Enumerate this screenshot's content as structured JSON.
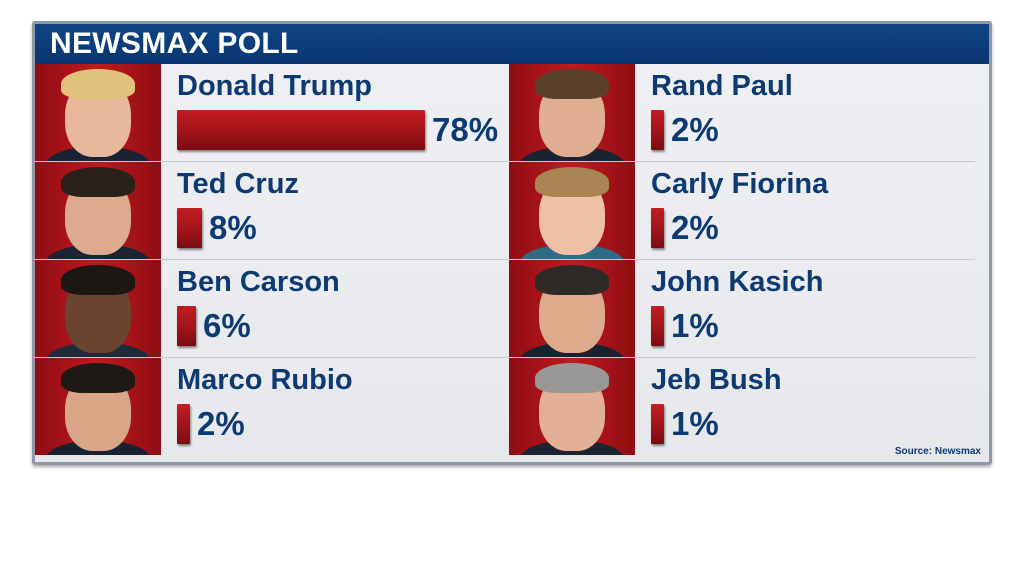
{
  "header": {
    "title": "NEWSMAX POLL"
  },
  "source": "Source: Newsmax",
  "colors": {
    "header": "#0f4585",
    "bar": "#b0171c",
    "text": "#0d3a70",
    "photo_bg": "#c01a1f"
  },
  "chart_data": {
    "type": "bar",
    "title": "NEWSMAX POLL",
    "categories": [
      "Donald Trump",
      "Ted Cruz",
      "Ben Carson",
      "Marco Rubio",
      "Rand Paul",
      "Carly Fiorina",
      "John Kasich",
      "Jeb Bush"
    ],
    "values": [
      78,
      8,
      6,
      2,
      2,
      2,
      1,
      1
    ],
    "labels": [
      "78%",
      "8%",
      "6%",
      "2%",
      "2%",
      "2%",
      "1%",
      "1%"
    ],
    "unit": "%",
    "ylim": [
      0,
      78
    ],
    "source": "Source: Newsmax"
  },
  "candidates": [
    {
      "name": "Donald Trump",
      "pct_label": "78%",
      "value": 78,
      "hair": "#e1c27a",
      "skin": "#e8b89a",
      "suit": "#1b2233"
    },
    {
      "name": "Ted Cruz",
      "pct_label": "8%",
      "value": 8,
      "hair": "#2b211b",
      "skin": "#dcab8e",
      "suit": "#1c2433"
    },
    {
      "name": "Ben Carson",
      "pct_label": "6%",
      "value": 6,
      "hair": "#1d1714",
      "skin": "#6b4430",
      "suit": "#1f2a3a"
    },
    {
      "name": "Marco Rubio",
      "pct_label": "2%",
      "value": 2,
      "hair": "#1f1915",
      "skin": "#d9a687",
      "suit": "#1a2230"
    },
    {
      "name": "Rand Paul",
      "pct_label": "2%",
      "value": 2,
      "hair": "#5a3f2a",
      "skin": "#e0ae90",
      "suit": "#1b2230"
    },
    {
      "name": "Carly Fiorina",
      "pct_label": "2%",
      "value": 2,
      "hair": "#a88552",
      "skin": "#eec1a6",
      "suit": "#2f6b85"
    },
    {
      "name": "John Kasich",
      "pct_label": "1%",
      "value": 1,
      "hair": "#2d2a28",
      "skin": "#ddaa8c",
      "suit": "#1a2130"
    },
    {
      "name": "Jeb Bush",
      "pct_label": "1%",
      "value": 1,
      "hair": "#9a9896",
      "skin": "#e2b096",
      "suit": "#1d2431"
    }
  ]
}
